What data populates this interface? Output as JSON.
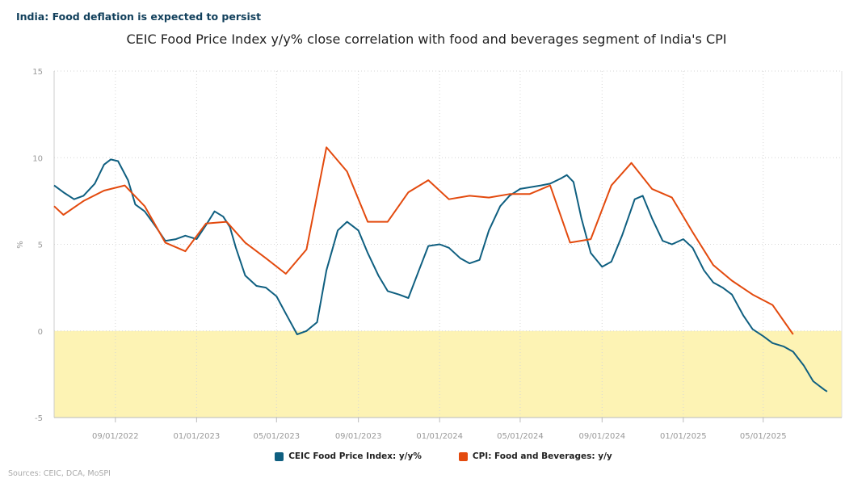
{
  "header": {
    "title": "India: Food deflation is expected to persist"
  },
  "source": "Sources: CEIC, DCA, MoSPI",
  "colors": {
    "ceic": "#0f5f80",
    "cpi": "#e34a0e",
    "shade": "#fdf3b4"
  },
  "chart_data": {
    "type": "line",
    "title": "CEIC Food Price Index y/y% close correlation with food and beverages segment of India's CPI",
    "ylabel": "%",
    "ylim": [
      -5,
      15
    ],
    "yticks": [
      -5,
      0,
      5,
      10,
      15
    ],
    "xlim": [
      "2022-06-01",
      "2025-08-27"
    ],
    "xticks": [
      {
        "date": "2022-09-01",
        "label": "09/01/2022"
      },
      {
        "date": "2023-01-01",
        "label": "01/01/2023"
      },
      {
        "date": "2023-05-01",
        "label": "05/01/2023"
      },
      {
        "date": "2023-09-01",
        "label": "09/01/2023"
      },
      {
        "date": "2024-01-01",
        "label": "01/01/2024"
      },
      {
        "date": "2024-05-01",
        "label": "05/01/2024"
      },
      {
        "date": "2024-09-01",
        "label": "09/01/2024"
      },
      {
        "date": "2025-01-01",
        "label": "01/01/2025"
      },
      {
        "date": "2025-05-01",
        "label": "05/01/2025"
      }
    ],
    "shaded_region": {
      "y_from": -5,
      "y_to": 0
    },
    "grid": true,
    "legend": "bottom",
    "series": [
      {
        "name": "CEIC Food Price Index: y/y%",
        "color": "#0f5f80",
        "points": [
          [
            "2022-06-01",
            8.4
          ],
          [
            "2022-06-15",
            8.0
          ],
          [
            "2022-07-01",
            7.6
          ],
          [
            "2022-07-15",
            7.8
          ],
          [
            "2022-08-01",
            8.5
          ],
          [
            "2022-08-15",
            9.6
          ],
          [
            "2022-08-25",
            9.9
          ],
          [
            "2022-09-05",
            9.8
          ],
          [
            "2022-09-20",
            8.7
          ],
          [
            "2022-10-01",
            7.3
          ],
          [
            "2022-10-15",
            6.9
          ],
          [
            "2022-11-01",
            6.0
          ],
          [
            "2022-11-15",
            5.2
          ],
          [
            "2022-12-01",
            5.3
          ],
          [
            "2022-12-15",
            5.5
          ],
          [
            "2023-01-01",
            5.3
          ],
          [
            "2023-01-15",
            6.1
          ],
          [
            "2023-01-28",
            6.9
          ],
          [
            "2023-02-10",
            6.6
          ],
          [
            "2023-02-20",
            6.0
          ],
          [
            "2023-03-01",
            4.8
          ],
          [
            "2023-03-15",
            3.2
          ],
          [
            "2023-04-01",
            2.6
          ],
          [
            "2023-04-15",
            2.5
          ],
          [
            "2023-05-01",
            2.0
          ],
          [
            "2023-05-15",
            1.0
          ],
          [
            "2023-06-01",
            -0.2
          ],
          [
            "2023-06-15",
            0.0
          ],
          [
            "2023-07-01",
            0.5
          ],
          [
            "2023-07-15",
            3.5
          ],
          [
            "2023-08-01",
            5.8
          ],
          [
            "2023-08-15",
            6.3
          ],
          [
            "2023-09-01",
            5.8
          ],
          [
            "2023-09-15",
            4.5
          ],
          [
            "2023-10-01",
            3.2
          ],
          [
            "2023-10-15",
            2.3
          ],
          [
            "2023-11-01",
            2.1
          ],
          [
            "2023-11-15",
            1.9
          ],
          [
            "2023-12-01",
            3.5
          ],
          [
            "2023-12-15",
            4.9
          ],
          [
            "2024-01-01",
            5.0
          ],
          [
            "2024-01-15",
            4.8
          ],
          [
            "2024-02-01",
            4.2
          ],
          [
            "2024-02-15",
            3.9
          ],
          [
            "2024-03-01",
            4.1
          ],
          [
            "2024-03-15",
            5.8
          ],
          [
            "2024-04-01",
            7.2
          ],
          [
            "2024-04-15",
            7.8
          ],
          [
            "2024-05-01",
            8.2
          ],
          [
            "2024-06-01",
            8.4
          ],
          [
            "2024-06-15",
            8.5
          ],
          [
            "2024-07-01",
            8.8
          ],
          [
            "2024-07-10",
            9.0
          ],
          [
            "2024-07-20",
            8.6
          ],
          [
            "2024-08-01",
            6.5
          ],
          [
            "2024-08-15",
            4.5
          ],
          [
            "2024-09-01",
            3.7
          ],
          [
            "2024-09-15",
            4.0
          ],
          [
            "2024-10-01",
            5.5
          ],
          [
            "2024-10-20",
            7.6
          ],
          [
            "2024-11-01",
            7.8
          ],
          [
            "2024-11-15",
            6.5
          ],
          [
            "2024-12-01",
            5.2
          ],
          [
            "2024-12-15",
            5.0
          ],
          [
            "2025-01-01",
            5.3
          ],
          [
            "2025-01-15",
            4.8
          ],
          [
            "2025-02-01",
            3.5
          ],
          [
            "2025-02-15",
            2.8
          ],
          [
            "2025-03-01",
            2.5
          ],
          [
            "2025-03-15",
            2.1
          ],
          [
            "2025-04-01",
            0.9
          ],
          [
            "2025-04-15",
            0.1
          ],
          [
            "2025-05-01",
            -0.3
          ],
          [
            "2025-05-15",
            -0.7
          ],
          [
            "2025-06-01",
            -0.9
          ],
          [
            "2025-06-15",
            -1.2
          ],
          [
            "2025-07-01",
            -2.0
          ],
          [
            "2025-07-15",
            -2.9
          ],
          [
            "2025-08-01",
            -3.4
          ],
          [
            "2025-08-05",
            -3.5
          ]
        ]
      },
      {
        "name": "CPI: Food and Beverages: y/y",
        "color": "#e34a0e",
        "points": [
          [
            "2022-06-01",
            7.2
          ],
          [
            "2022-06-15",
            6.7
          ],
          [
            "2022-07-15",
            7.5
          ],
          [
            "2022-08-15",
            8.1
          ],
          [
            "2022-09-15",
            8.4
          ],
          [
            "2022-10-15",
            7.2
          ],
          [
            "2022-11-15",
            5.1
          ],
          [
            "2022-12-15",
            4.6
          ],
          [
            "2023-01-15",
            6.2
          ],
          [
            "2023-02-15",
            6.3
          ],
          [
            "2023-03-15",
            5.1
          ],
          [
            "2023-04-15",
            4.2
          ],
          [
            "2023-05-15",
            3.3
          ],
          [
            "2023-06-15",
            4.7
          ],
          [
            "2023-07-15",
            10.6
          ],
          [
            "2023-08-15",
            9.2
          ],
          [
            "2023-09-15",
            6.3
          ],
          [
            "2023-10-15",
            6.3
          ],
          [
            "2023-11-15",
            8.0
          ],
          [
            "2023-12-15",
            8.7
          ],
          [
            "2024-01-15",
            7.6
          ],
          [
            "2024-02-15",
            7.8
          ],
          [
            "2024-03-15",
            7.7
          ],
          [
            "2024-04-15",
            7.9
          ],
          [
            "2024-05-15",
            7.9
          ],
          [
            "2024-06-15",
            8.4
          ],
          [
            "2024-07-15",
            5.1
          ],
          [
            "2024-08-15",
            5.3
          ],
          [
            "2024-09-15",
            8.4
          ],
          [
            "2024-10-15",
            9.7
          ],
          [
            "2024-11-15",
            8.2
          ],
          [
            "2024-12-15",
            7.7
          ],
          [
            "2025-01-15",
            5.7
          ],
          [
            "2025-02-15",
            3.8
          ],
          [
            "2025-03-15",
            2.9
          ],
          [
            "2025-04-15",
            2.1
          ],
          [
            "2025-05-15",
            1.5
          ],
          [
            "2025-06-15",
            -0.2
          ]
        ]
      }
    ]
  }
}
